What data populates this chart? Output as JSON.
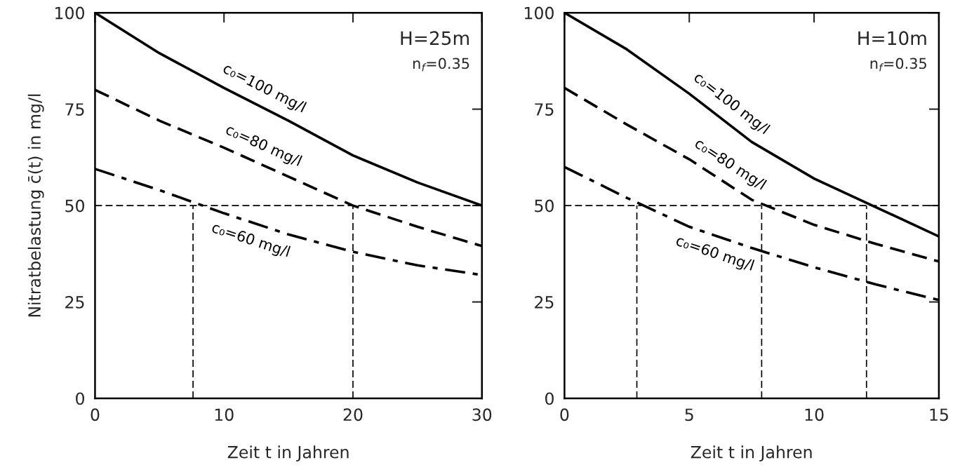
{
  "chart_data": [
    {
      "type": "line",
      "xlabel": "Zeit t in Jahren",
      "ylabel": "Nitratbelastung c̄(t) in mg/l",
      "xlim": [
        0,
        30
      ],
      "ylim": [
        0,
        100
      ],
      "xticks": [
        0,
        10,
        20,
        30
      ],
      "yticks": [
        0,
        25,
        50,
        75,
        100
      ],
      "grid": false,
      "legend": false,
      "marker": "none",
      "x": [
        0,
        5,
        10,
        15,
        20,
        25,
        30
      ],
      "series": [
        {
          "name": "c₀=100 mg/l",
          "color": "#000000",
          "line_style": "solid",
          "values": [
            100,
            89.5,
            80.5,
            72,
            63,
            56,
            50
          ]
        },
        {
          "name": "c₀=80 mg/l",
          "color": "#000000",
          "line_style": "dashed",
          "values": [
            80,
            72,
            65,
            57.5,
            50,
            44.5,
            39.5
          ]
        },
        {
          "name": "c₀=60 mg/l",
          "color": "#000000",
          "line_style": "dashdot",
          "values": [
            59.5,
            54,
            48,
            42.5,
            38,
            34.5,
            32
          ]
        }
      ],
      "ref_lines": [
        {
          "axis": "y",
          "value": 50,
          "line_style": "dashed"
        },
        {
          "axis": "x",
          "value": 7.6,
          "line_style": "dashed"
        },
        {
          "axis": "x",
          "value": 20,
          "line_style": "dashed"
        }
      ],
      "annotations": [
        "H=25m",
        "n$_{f}$=0.35"
      ]
    },
    {
      "type": "line",
      "xlabel": "Zeit t in Jahren",
      "xlim": [
        0,
        15
      ],
      "ylim": [
        0,
        100
      ],
      "xticks": [
        0,
        5,
        10,
        15
      ],
      "yticks": [
        0,
        25,
        50,
        75,
        100
      ],
      "grid": false,
      "legend": false,
      "marker": "none",
      "x": [
        0,
        2.5,
        5,
        7.5,
        10,
        12.5,
        15
      ],
      "series": [
        {
          "name": "c₀=100 mg/l",
          "color": "#000000",
          "line_style": "solid",
          "values": [
            100,
            90.5,
            79,
            66.5,
            57,
            49.5,
            42
          ]
        },
        {
          "name": "c₀=80 mg/l",
          "color": "#000000",
          "line_style": "dashed",
          "values": [
            80.5,
            71,
            62,
            51.5,
            45,
            40,
            35.5
          ]
        },
        {
          "name": "c₀=60 mg/l",
          "color": "#000000",
          "line_style": "dashdot",
          "values": [
            60,
            52,
            44.5,
            39,
            34,
            29.5,
            25.5
          ]
        }
      ],
      "ref_lines": [
        {
          "axis": "y",
          "value": 50,
          "line_style": "dashed"
        },
        {
          "axis": "x",
          "value": 2.9,
          "line_style": "dashed"
        },
        {
          "axis": "x",
          "value": 7.9,
          "line_style": "dashed"
        },
        {
          "axis": "x",
          "value": 12.1,
          "line_style": "dashed"
        }
      ],
      "annotations": [
        "H=10m",
        "n$_{f}$=0.35"
      ]
    }
  ]
}
